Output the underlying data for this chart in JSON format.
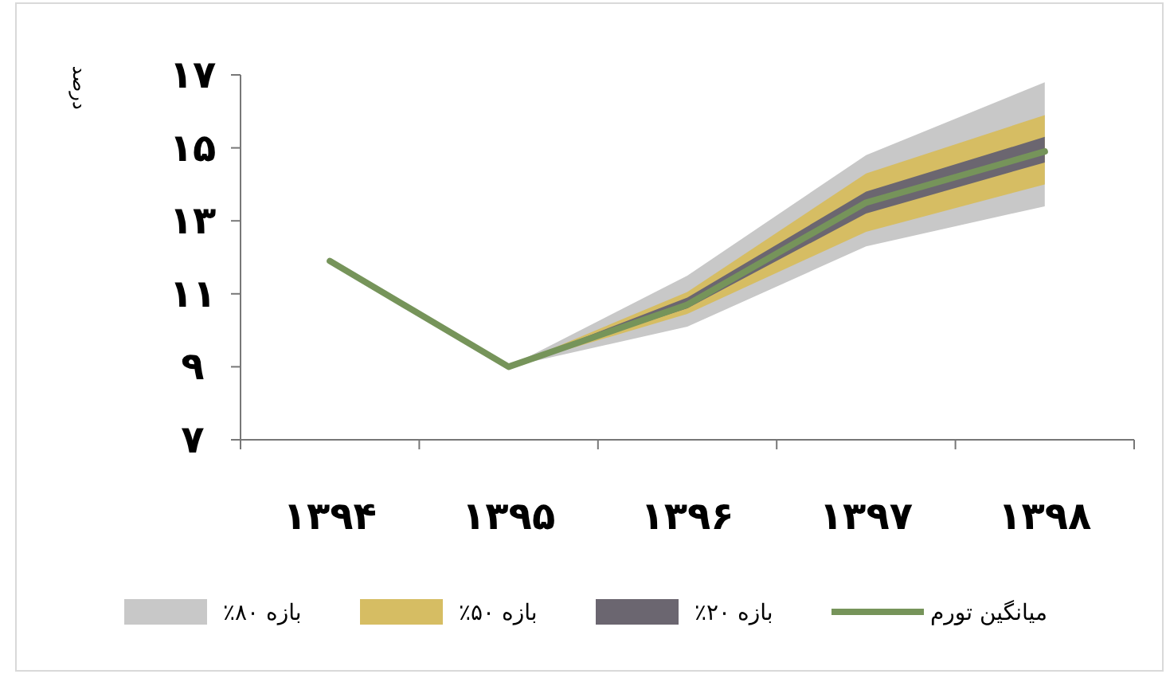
{
  "chart_data": {
    "type": "line",
    "ylabel": "درصد",
    "categories": [
      "۱۳۹۴",
      "۱۳۹۵",
      "۱۳۹۶",
      "۱۳۹۷",
      "۱۳۹۸"
    ],
    "series": [
      {
        "name": "بازه ۸۰٪",
        "type": "line",
        "color": "#c8c8c8",
        "values": [
          null,
          null,
          null,
          null,
          null
        ],
        "lower": [
          null,
          9.0,
          10.1,
          12.3,
          13.4
        ],
        "upper": [
          null,
          9.0,
          11.5,
          14.8,
          16.8
        ]
      },
      {
        "name": "بازه ۵۰٪",
        "type": "line",
        "color": "#d6bd63",
        "values": [
          null,
          null,
          null,
          null,
          null
        ],
        "lower": [
          null,
          9.0,
          10.45,
          12.7,
          14.0
        ],
        "upper": [
          null,
          9.0,
          11.05,
          14.3,
          15.9
        ]
      },
      {
        "name": "بازه ۲۰٪",
        "type": "line",
        "color": "#6b6670",
        "values": [
          null,
          null,
          null,
          null,
          null
        ],
        "lower": [
          null,
          9.0,
          10.6,
          13.2,
          14.6
        ],
        "upper": [
          null,
          9.0,
          10.9,
          13.8,
          15.3
        ]
      },
      {
        "name": "میانگین تورم",
        "type": "line",
        "color": "#76945a",
        "values": [
          11.9,
          9.0,
          10.7,
          13.5,
          14.9
        ]
      }
    ],
    "ylim": [
      7,
      17
    ],
    "yticks": [
      {
        "value": 7,
        "label": "۷"
      },
      {
        "value": 9,
        "label": "۹"
      },
      {
        "value": 11,
        "label": "۱۱"
      },
      {
        "value": 13,
        "label": "۱۳"
      },
      {
        "value": 15,
        "label": "۱۵"
      },
      {
        "value": 17,
        "label": "۱۷"
      }
    ],
    "grid": false,
    "legend": "bottom",
    "marker": "none",
    "line_style": "solid"
  }
}
